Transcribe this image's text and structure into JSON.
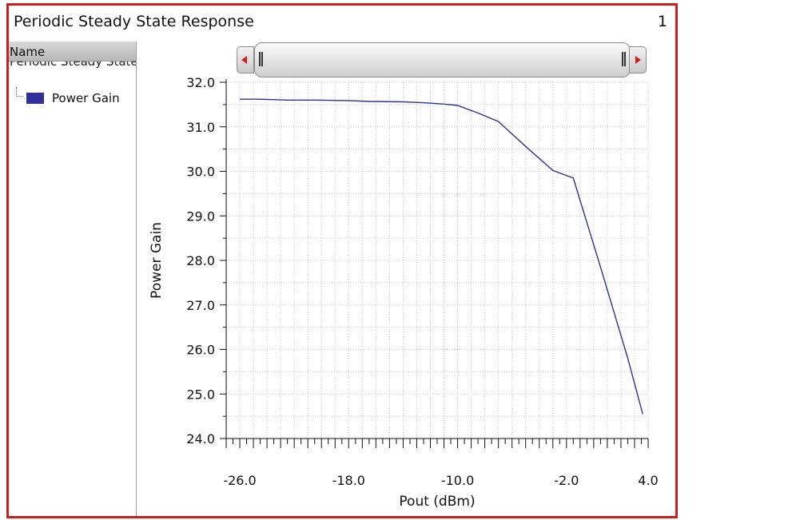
{
  "window": {
    "title": "Periodic Steady State Response",
    "pane_number": "1",
    "border_color": "#c8201e"
  },
  "legend": {
    "header": "Name",
    "truncated_text": "Periodic Steady State",
    "items": [
      {
        "label": "Power Gain",
        "color": "#2f309a"
      }
    ]
  },
  "chart_data": {
    "type": "line",
    "title": "",
    "xlabel": "Pout (dBm)",
    "ylabel": "Power Gain",
    "xlim": [
      -27.0,
      4.0
    ],
    "ylim": [
      24.0,
      32.0
    ],
    "xticks": [
      "-26.0",
      "-18.0",
      "-10.0",
      "-2.0",
      "4.0"
    ],
    "xtick_values": [
      -26,
      -18,
      -10,
      -2,
      4
    ],
    "yticks": [
      "24.0",
      "25.0",
      "26.0",
      "27.0",
      "28.0",
      "29.0",
      "30.0",
      "31.0",
      "32.0"
    ],
    "ytick_values": [
      24,
      25,
      26,
      27,
      28,
      29,
      30,
      31,
      32
    ],
    "grid": true,
    "series": [
      {
        "name": "Power Gain",
        "color": "#2f309a",
        "x": [
          -26.0,
          -24.5,
          -22.5,
          -20.5,
          -18.0,
          -16.5,
          -14.0,
          -12.5,
          -11.0,
          -10.0,
          -8.5,
          -7.0,
          -5.0,
          -3.0,
          -1.5,
          0.5,
          2.5,
          3.6
        ],
        "y": [
          31.62,
          31.62,
          31.6,
          31.6,
          31.59,
          31.57,
          31.56,
          31.54,
          31.51,
          31.48,
          31.31,
          31.12,
          30.56,
          30.02,
          29.85,
          27.85,
          25.8,
          24.55
        ]
      }
    ]
  }
}
